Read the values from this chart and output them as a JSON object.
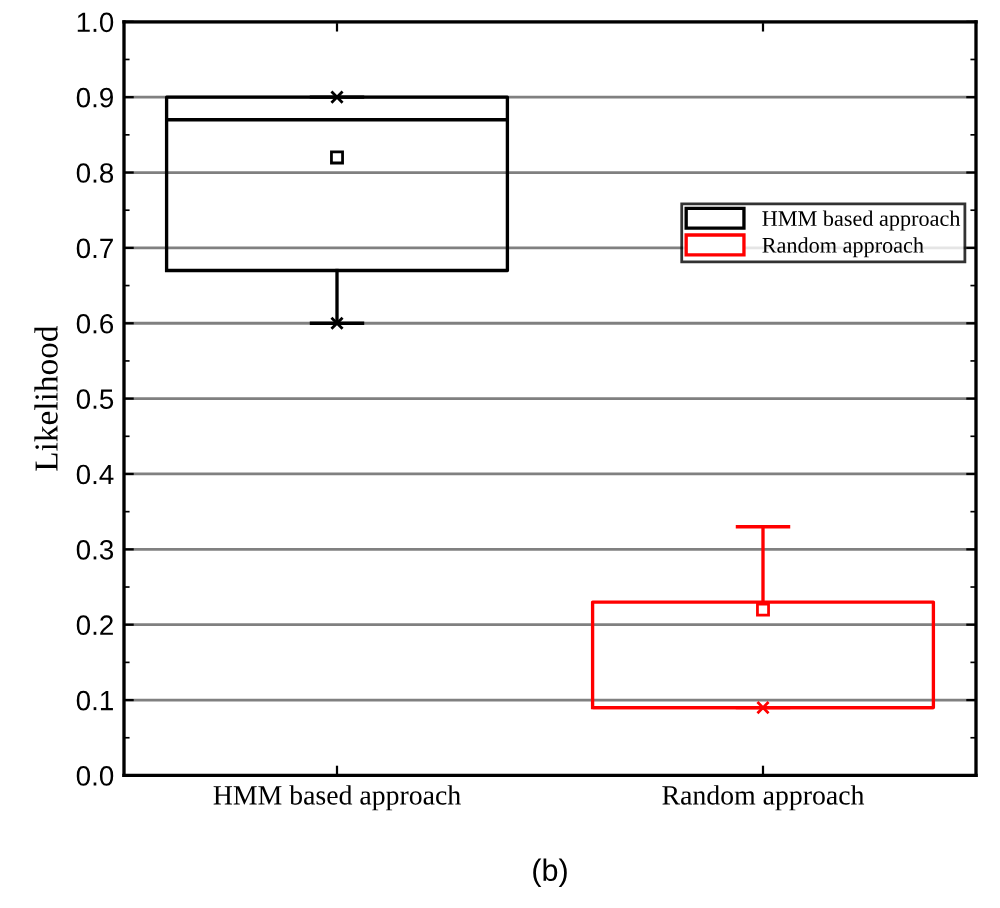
{
  "chart_data": {
    "type": "box",
    "ylabel": "Likelihood",
    "categories": [
      "HMM based approach",
      "Random approach"
    ],
    "series": [
      {
        "name": "HMM based approach",
        "color": "#000000",
        "boxes": [
          {
            "low": 0.6,
            "q1": 0.67,
            "median": 0.87,
            "q3": 0.9,
            "high": 0.9,
            "mean": 0.82,
            "outliers": [
              0.9,
              0.6
            ]
          },
          null
        ]
      },
      {
        "name": "Random approach",
        "color": "#ff0000",
        "boxes": [
          null,
          {
            "low": 0.09,
            "q1": 0.09,
            "median": 0.09,
            "q3": 0.23,
            "high": 0.33,
            "mean": 0.22,
            "outliers": [
              0.09
            ]
          }
        ]
      }
    ],
    "ylim": [
      0,
      1
    ],
    "yticks": [
      {
        "value": 0,
        "label": "0.0"
      },
      0.1,
      0.2,
      0.3,
      0.4,
      0.5,
      0.6,
      0.7,
      0.8,
      0.9,
      {
        "value": 1,
        "label": "1.0"
      }
    ],
    "grid": "y",
    "legend": "right",
    "marker": "square",
    "annotations": [
      "(b)"
    ]
  }
}
